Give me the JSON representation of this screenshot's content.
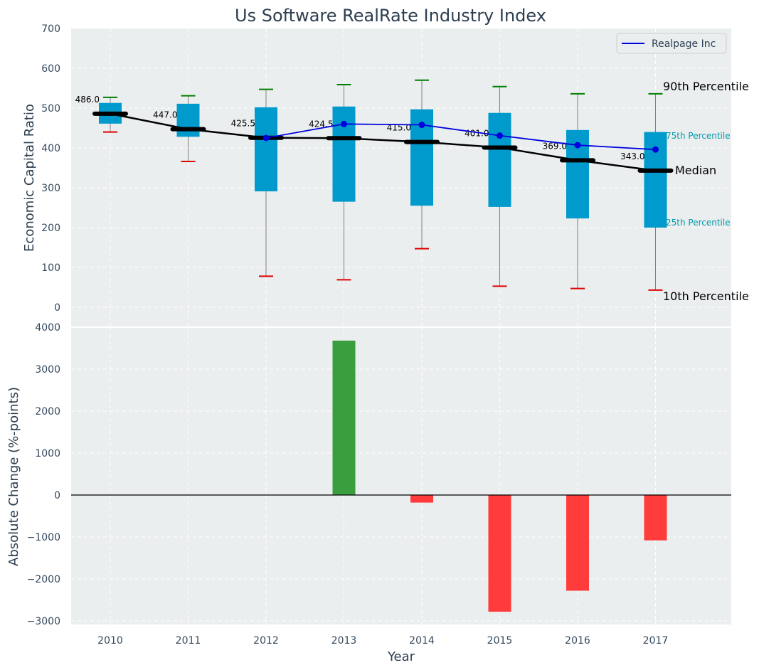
{
  "colors": {
    "panel_bg": "#eaeeef",
    "box_fill": "#009acd",
    "median": "#000000",
    "company": "#0000dd",
    "p90_cap": "#008000",
    "p10_cap": "#e00000",
    "whisker": "#808080",
    "bar_pos": "#3a9e3f",
    "bar_neg": "#ff3b3b",
    "pct_label": "#0099aa"
  },
  "chart_data": [
    {
      "type": "box",
      "title": "Us Software RealRate Industry Index",
      "xlabel": "Year",
      "ylabel": "Economic Capital Ratio",
      "ylim": [
        -20,
        700
      ],
      "yticks": [
        0,
        100,
        200,
        300,
        400,
        500,
        600,
        700
      ],
      "categories": [
        "2010",
        "2011",
        "2012",
        "2013",
        "2014",
        "2015",
        "2016",
        "2017"
      ],
      "p10": [
        440,
        366,
        78,
        69,
        147,
        53,
        47,
        43
      ],
      "p25": [
        461,
        428,
        291,
        265,
        255,
        252,
        223,
        200
      ],
      "median": [
        486.0,
        447.0,
        425.5,
        424.5,
        415.0,
        401.0,
        369.0,
        343.0
      ],
      "p75": [
        513,
        511,
        502,
        504,
        497,
        488,
        445,
        440
      ],
      "p90": [
        527,
        531,
        547,
        559,
        570,
        554,
        536,
        536
      ],
      "median_labels": [
        "486.0",
        "447.0",
        "425.5",
        "424.5",
        "415.0",
        "401.0",
        "369.0",
        "343.0"
      ],
      "company_series": {
        "name": "Realpage Inc",
        "x": [
          "2012",
          "2013",
          "2014",
          "2015",
          "2016",
          "2017"
        ],
        "values": [
          425,
          460,
          458,
          431,
          407,
          396
        ]
      },
      "legend": {
        "position": "top-right",
        "entries": [
          "Realpage Inc"
        ]
      },
      "annotations": {
        "p90": "90th Percentile",
        "p75": "75th Percentile",
        "median": "Median",
        "p25": "25th Percentile",
        "p10": "10th Percentile"
      }
    },
    {
      "type": "bar",
      "xlabel": "Year",
      "ylabel": "Absolute Change (%-points)",
      "ylim": [
        -3100,
        4000
      ],
      "yticks": [
        -3000,
        -2000,
        -1000,
        0,
        1000,
        2000,
        3000,
        4000
      ],
      "categories": [
        "2010",
        "2011",
        "2012",
        "2013",
        "2014",
        "2015",
        "2016",
        "2017"
      ],
      "values": [
        null,
        null,
        null,
        3680,
        -180,
        -2780,
        -2280,
        -1080
      ]
    }
  ]
}
